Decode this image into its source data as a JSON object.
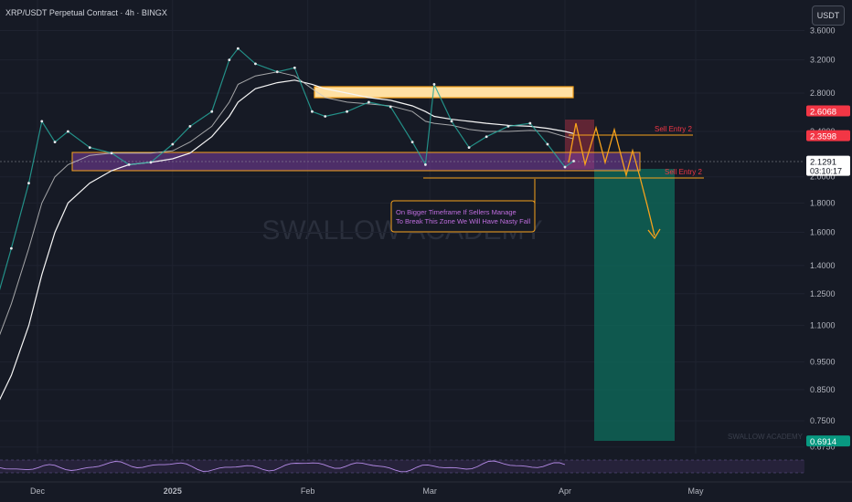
{
  "chart_title": "XRP/USDT Perpetual Contract · 4h · BINGX",
  "currency_button": "USDT",
  "watermark": "SWALLOW ACADEMY",
  "footer_watermark": "SWALLOW ACADEMY",
  "annotation_text": "On Bigger Timeframe If Sellers Manage To Break This Zone We Will Have Nasty Fall",
  "sell_entry_labels": [
    "Sell Entry 2",
    "Sell Entry 2"
  ],
  "price_badges": [
    {
      "value": "2.6068",
      "color": "#f23645"
    },
    {
      "value": "2.3598",
      "color": "#f23645"
    },
    {
      "value": "2.1291",
      "sub": "03:10:17",
      "color": "#ffffff"
    },
    {
      "value": "0.6914",
      "color": "#089981"
    }
  ],
  "colors": {
    "bg": "#161a25",
    "price_line": "#e8eaed",
    "ma_fast": "#c9c9c9",
    "ma_slow": "#f5f5f5",
    "zone": "#7b3fa0",
    "zone_border": "#f7a21b",
    "tp_zone": "#0e6e5c",
    "sl_zone": "#7a2a3a",
    "arrow": "#f7a21b",
    "rsi": "#b48ae6"
  },
  "chart_data": {
    "type": "line",
    "title": "XRP/USDT Perpetual Contract · 4h · BINGX",
    "y_scale": "log",
    "yticks": [
      "3.6000",
      "3.2000",
      "2.8000",
      "2.4000",
      "2.0000",
      "1.8000",
      "1.6000",
      "1.4000",
      "1.2500",
      "1.1000",
      "0.9500",
      "0.8500",
      "0.7500",
      "0.6750"
    ],
    "xticks": [
      "Dec",
      "2025",
      "Feb",
      "Mar",
      "Apr",
      "May"
    ],
    "x": [
      "2024-11-20",
      "2024-11-25",
      "2024-11-29",
      "2024-12-02",
      "2024-12-05",
      "2024-12-08",
      "2024-12-13",
      "2024-12-18",
      "2024-12-22",
      "2024-12-27",
      "2025-01-01",
      "2025-01-05",
      "2025-01-10",
      "2025-01-14",
      "2025-01-16",
      "2025-01-20",
      "2025-01-25",
      "2025-01-29",
      "2025-02-02",
      "2025-02-05",
      "2025-02-10",
      "2025-02-15",
      "2025-02-20",
      "2025-02-25",
      "2025-02-28",
      "2025-03-02",
      "2025-03-06",
      "2025-03-10",
      "2025-03-14",
      "2025-03-19",
      "2025-03-24",
      "2025-03-28",
      "2025-04-01",
      "2025-04-03"
    ],
    "series": [
      {
        "values": [
          1.1,
          1.5,
          1.95,
          2.5,
          2.3,
          2.4,
          2.25,
          2.2,
          2.1,
          2.12,
          2.28,
          2.45,
          2.6,
          3.2,
          3.35,
          3.15,
          3.05,
          3.1,
          2.6,
          2.55,
          2.6,
          2.7,
          2.65,
          2.3,
          2.1,
          2.9,
          2.5,
          2.25,
          2.35,
          2.45,
          2.48,
          2.28,
          2.08,
          2.13
        ]
      }
    ],
    "moving_averages": [
      {
        "values": [
          0.95,
          1.2,
          1.5,
          1.8,
          2.0,
          2.1,
          2.18,
          2.2,
          2.2,
          2.2,
          2.22,
          2.3,
          2.45,
          2.7,
          2.9,
          3.0,
          3.05,
          3.0,
          2.85,
          2.75,
          2.7,
          2.68,
          2.66,
          2.6,
          2.5,
          2.48,
          2.46,
          2.42,
          2.4,
          2.4,
          2.41,
          2.4,
          2.35,
          2.33
        ]
      },
      {
        "values": [
          0.75,
          0.9,
          1.1,
          1.35,
          1.6,
          1.8,
          1.95,
          2.05,
          2.1,
          2.12,
          2.15,
          2.2,
          2.35,
          2.55,
          2.7,
          2.85,
          2.92,
          2.95,
          2.9,
          2.85,
          2.8,
          2.75,
          2.72,
          2.66,
          2.6,
          2.55,
          2.52,
          2.5,
          2.48,
          2.46,
          2.45,
          2.43,
          2.4,
          2.38
        ]
      }
    ],
    "zones": [
      {
        "name": "support",
        "from": 2.08,
        "to": 2.23
      },
      {
        "name": "resistance",
        "from": 2.83,
        "to": 2.92
      }
    ],
    "levels": [
      {
        "value": 2.36
      },
      {
        "value": 2.0
      }
    ],
    "short_position": {
      "entry": 2.13,
      "stop": 2.6068,
      "target": 0.6914
    }
  }
}
